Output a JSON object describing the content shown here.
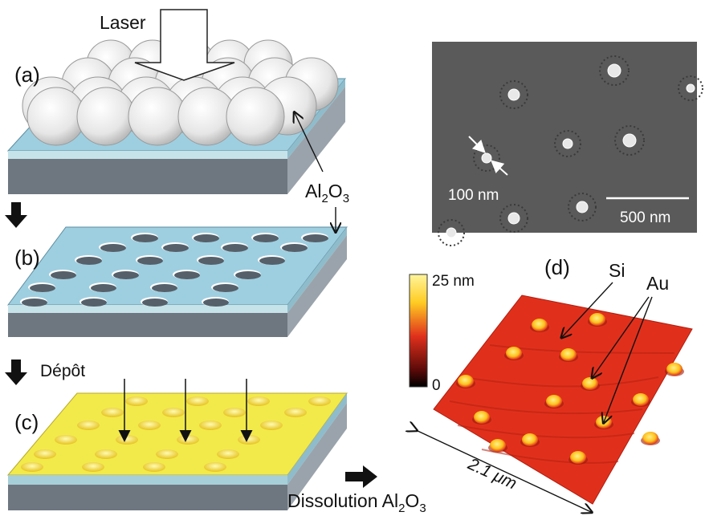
{
  "labels": {
    "laser": "Laser",
    "panel_a": "(a)",
    "panel_b": "(b)",
    "panel_c": "(c)",
    "panel_d": "(d)",
    "al2o3_main": "Al",
    "al2o3_sub": "2",
    "al2o3_tail": "O",
    "al2o3_sub2": "3",
    "depot": "Dépôt",
    "dissolution": "Dissolution Al",
    "dissolution_sub": "2",
    "dissolution_o": "O",
    "dissolution_sub2": "3"
  },
  "sem": {
    "size_label": "100 nm",
    "scale_label": "500 nm"
  },
  "afm": {
    "scale_max": "25 nm",
    "scale_min": "0",
    "si_label": "Si",
    "au_label": "Au",
    "width_label": "2.1 μm"
  },
  "colors": {
    "substrate_top": "#9ecfe0",
    "substrate_side": "#7f8a93",
    "gold": "#f2ea4a",
    "afm_red": "#e0301c",
    "sem_gray": "#5a5a5a"
  }
}
